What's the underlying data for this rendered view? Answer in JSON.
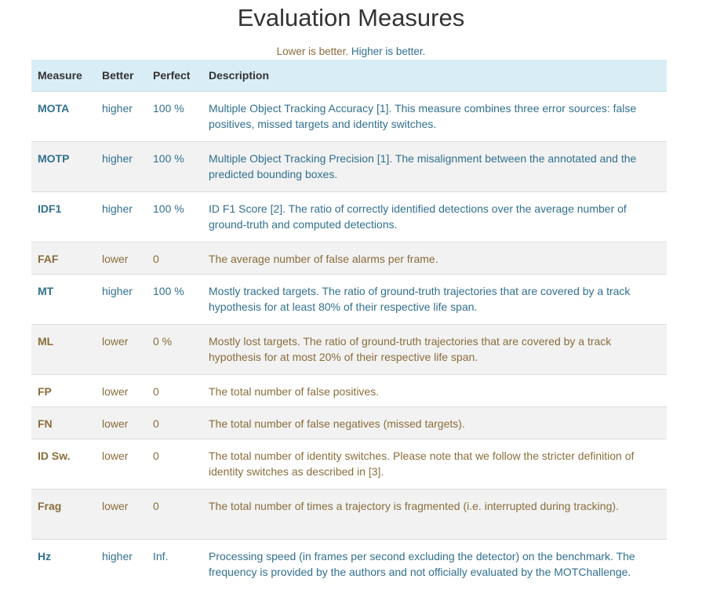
{
  "title": "Evaluation Measures",
  "legend": {
    "lower_text": "Lower is better.",
    "higher_text": "Higher is better.",
    "colors": {
      "lower": "#8a6d3b",
      "higher": "#31708f",
      "header_bg": "#d9edf7"
    }
  },
  "table": {
    "headers": [
      "Measure",
      "Better",
      "Perfect",
      "Description"
    ],
    "rows": [
      {
        "measure": "MOTA",
        "better": "higher",
        "perfect": "100 %",
        "description": "Multiple Object Tracking Accuracy [1]. This measure combines three error sources: false positives, missed targets and identity switches."
      },
      {
        "measure": "MOTP",
        "better": "higher",
        "perfect": "100 %",
        "description": "Multiple Object Tracking Precision [1]. The misalignment between the annotated and the predicted bounding boxes."
      },
      {
        "measure": "IDF1",
        "better": "higher",
        "perfect": "100 %",
        "description": "ID F1 Score [2]. The ratio of correctly identified detections over the average number of ground-truth and computed detections."
      },
      {
        "measure": "FAF",
        "better": "lower",
        "perfect": "0",
        "description": "The average number of false alarms per frame."
      },
      {
        "measure": "MT",
        "better": "higher",
        "perfect": "100 %",
        "description": "Mostly tracked targets. The ratio of ground-truth trajectories that are covered by a track hypothesis for at least 80% of their respective life span."
      },
      {
        "measure": "ML",
        "better": "lower",
        "perfect": "0 %",
        "description": "Mostly lost targets. The ratio of ground-truth trajectories that are covered by a track hypothesis for at most 20% of their respective life span."
      },
      {
        "measure": "FP",
        "better": "lower",
        "perfect": "0",
        "description": "The total number of false positives."
      },
      {
        "measure": "FN",
        "better": "lower",
        "perfect": "0",
        "description": "The total number of false negatives (missed targets)."
      },
      {
        "measure": "ID Sw.",
        "better": "lower",
        "perfect": "0",
        "description": "The total number of identity switches. Please note that we follow the stricter definition of identity switches as described in [3]."
      },
      {
        "measure": "Frag",
        "better": "lower",
        "perfect": "0",
        "description": "The total number of times a trajectory is fragmented (i.e. interrupted during tracking)."
      },
      {
        "measure": "Hz",
        "better": "higher",
        "perfect": "Inf.",
        "description": "Processing speed (in frames per second excluding the detector) on the benchmark. The frequency is provided by the authors and not officially evaluated by the MOTChallenge."
      }
    ]
  }
}
